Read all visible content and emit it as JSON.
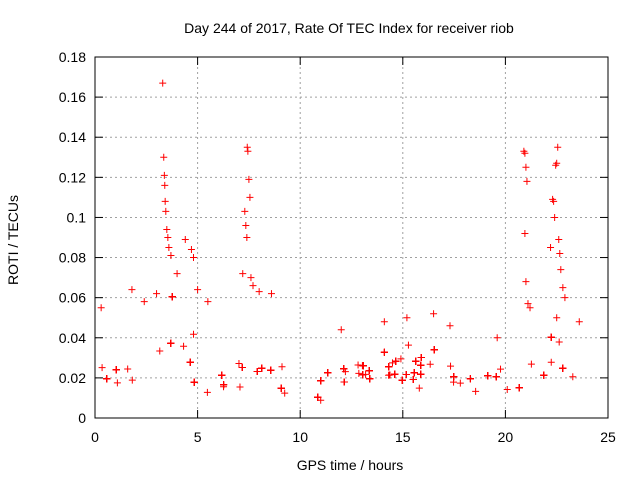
{
  "chart_data": {
    "type": "scatter",
    "title": "Day 244 of 2017, Rate Of TEC Index for receiver riob",
    "xlabel": "GPS time / hours",
    "ylabel": "ROTI / TECUs",
    "xlim": [
      0,
      25
    ],
    "ylim": [
      0,
      0.18
    ],
    "xticks": [
      0,
      5,
      10,
      15,
      20,
      25
    ],
    "xtick_labels": [
      "0",
      "5",
      "10",
      "15",
      "20",
      "25"
    ],
    "yticks": [
      0,
      0.02,
      0.04,
      0.06,
      0.08,
      0.1,
      0.12,
      0.14,
      0.16,
      0.18
    ],
    "ytick_labels": [
      "0",
      "0.02",
      "0.04",
      "0.06",
      "0.08",
      "0.1",
      "0.12",
      "0.14",
      "0.16",
      "0.18"
    ],
    "grid": true,
    "marker": "+",
    "marker_color": "#ff0000",
    "series": [
      {
        "name": "ROTI",
        "points": [
          [
            0.3,
            0.055
          ],
          [
            1.8,
            0.064
          ],
          [
            2.4,
            0.058
          ],
          [
            3.0,
            0.062
          ],
          [
            3.3,
            0.167
          ],
          [
            3.35,
            0.13
          ],
          [
            3.38,
            0.121
          ],
          [
            3.4,
            0.116
          ],
          [
            3.42,
            0.108
          ],
          [
            3.45,
            0.103
          ],
          [
            3.5,
            0.094
          ],
          [
            3.55,
            0.09
          ],
          [
            3.6,
            0.085
          ],
          [
            3.7,
            0.081
          ],
          [
            4.0,
            0.072
          ],
          [
            4.4,
            0.089
          ],
          [
            4.7,
            0.084
          ],
          [
            4.8,
            0.08
          ],
          [
            5.0,
            0.064
          ],
          [
            5.5,
            0.058
          ],
          [
            7.2,
            0.072
          ],
          [
            7.3,
            0.103
          ],
          [
            7.35,
            0.096
          ],
          [
            7.4,
            0.09
          ],
          [
            7.42,
            0.135
          ],
          [
            7.45,
            0.133
          ],
          [
            7.5,
            0.119
          ],
          [
            7.55,
            0.11
          ],
          [
            7.6,
            0.07
          ],
          [
            7.7,
            0.066
          ],
          [
            8.0,
            0.063
          ],
          [
            8.6,
            0.062
          ],
          [
            12.0,
            0.044
          ],
          [
            14.1,
            0.048
          ],
          [
            15.2,
            0.05
          ],
          [
            16.5,
            0.052
          ],
          [
            17.3,
            0.046
          ],
          [
            19.6,
            0.04
          ],
          [
            20.9,
            0.133
          ],
          [
            20.95,
            0.132
          ],
          [
            21.0,
            0.125
          ],
          [
            21.05,
            0.118
          ],
          [
            20.95,
            0.092
          ],
          [
            21.0,
            0.068
          ],
          [
            21.1,
            0.057
          ],
          [
            21.2,
            0.055
          ],
          [
            22.2,
            0.085
          ],
          [
            22.3,
            0.109
          ],
          [
            22.35,
            0.108
          ],
          [
            22.4,
            0.1
          ],
          [
            22.45,
            0.126
          ],
          [
            22.5,
            0.127
          ],
          [
            22.55,
            0.135
          ],
          [
            22.6,
            0.089
          ],
          [
            22.65,
            0.082
          ],
          [
            22.7,
            0.074
          ],
          [
            22.8,
            0.065
          ],
          [
            22.9,
            0.06
          ],
          [
            22.5,
            0.05
          ],
          [
            23.6,
            0.048
          ]
        ]
      }
    ],
    "background_density": {
      "description": "dense band of markers",
      "knots_hours": [
        0,
        1,
        2,
        2.7,
        3.3,
        3.8,
        4.3,
        5,
        6,
        7,
        7.5,
        8.2,
        9,
        10,
        10.7,
        11.5,
        12,
        13,
        14,
        15,
        16,
        17,
        18,
        19,
        20,
        21,
        21.5,
        22,
        22.6,
        23.2,
        23.8
      ],
      "center_roti": [
        0.02,
        0.017,
        0.019,
        0.03,
        0.04,
        0.045,
        0.04,
        0.027,
        0.02,
        0.018,
        0.03,
        0.022,
        0.016,
        0.012,
        0.012,
        0.016,
        0.02,
        0.019,
        0.022,
        0.024,
        0.021,
        0.02,
        0.02,
        0.02,
        0.018,
        0.016,
        0.022,
        0.018,
        0.03,
        0.028,
        0.022
      ],
      "spread_roti": [
        0.01,
        0.008,
        0.009,
        0.014,
        0.016,
        0.018,
        0.016,
        0.012,
        0.009,
        0.009,
        0.013,
        0.01,
        0.008,
        0.005,
        0.005,
        0.009,
        0.01,
        0.009,
        0.01,
        0.01,
        0.01,
        0.009,
        0.009,
        0.009,
        0.009,
        0.008,
        0.012,
        0.009,
        0.014,
        0.013,
        0.012
      ]
    }
  }
}
